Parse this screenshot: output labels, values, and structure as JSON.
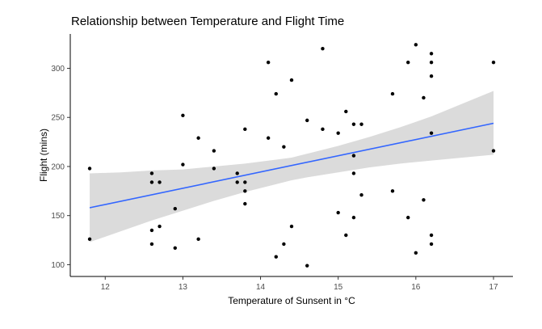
{
  "chart_data": {
    "type": "scatter",
    "title": "Relationship between Temperature and Flight Time",
    "xlabel": "Temperature of Sunsent in °C",
    "ylabel": "Flight (mins)",
    "xlim": [
      11.55,
      17.25
    ],
    "ylim": [
      88,
      335
    ],
    "xticks": [
      12,
      13,
      14,
      15,
      16,
      17
    ],
    "yticks": [
      100,
      150,
      200,
      250,
      300
    ],
    "grid": false,
    "legend": "none",
    "colors": {
      "points": "#000000",
      "fit_line": "#3366FF",
      "confidence_band": "#D9D9D9",
      "axis": "#000000",
      "tick_label": "#4D4D4D"
    },
    "points": [
      {
        "x": 11.8,
        "y": 198
      },
      {
        "x": 11.8,
        "y": 126
      },
      {
        "x": 12.6,
        "y": 193
      },
      {
        "x": 12.6,
        "y": 184
      },
      {
        "x": 12.6,
        "y": 135
      },
      {
        "x": 12.6,
        "y": 121
      },
      {
        "x": 12.7,
        "y": 184
      },
      {
        "x": 12.7,
        "y": 139
      },
      {
        "x": 12.9,
        "y": 157
      },
      {
        "x": 12.9,
        "y": 117
      },
      {
        "x": 13.0,
        "y": 252
      },
      {
        "x": 13.0,
        "y": 202
      },
      {
        "x": 13.2,
        "y": 229
      },
      {
        "x": 13.2,
        "y": 126
      },
      {
        "x": 13.4,
        "y": 216
      },
      {
        "x": 13.4,
        "y": 198
      },
      {
        "x": 13.7,
        "y": 193
      },
      {
        "x": 13.7,
        "y": 184
      },
      {
        "x": 13.8,
        "y": 238
      },
      {
        "x": 13.8,
        "y": 184
      },
      {
        "x": 13.8,
        "y": 175
      },
      {
        "x": 13.8,
        "y": 162
      },
      {
        "x": 14.1,
        "y": 306
      },
      {
        "x": 14.1,
        "y": 229
      },
      {
        "x": 14.2,
        "y": 274
      },
      {
        "x": 14.2,
        "y": 108
      },
      {
        "x": 14.3,
        "y": 220
      },
      {
        "x": 14.3,
        "y": 121
      },
      {
        "x": 14.4,
        "y": 288
      },
      {
        "x": 14.4,
        "y": 139
      },
      {
        "x": 14.6,
        "y": 247
      },
      {
        "x": 14.6,
        "y": 99
      },
      {
        "x": 14.8,
        "y": 320
      },
      {
        "x": 14.8,
        "y": 238
      },
      {
        "x": 15.0,
        "y": 234
      },
      {
        "x": 15.0,
        "y": 153
      },
      {
        "x": 15.1,
        "y": 256
      },
      {
        "x": 15.1,
        "y": 130
      },
      {
        "x": 15.2,
        "y": 243
      },
      {
        "x": 15.2,
        "y": 211
      },
      {
        "x": 15.2,
        "y": 193
      },
      {
        "x": 15.2,
        "y": 148
      },
      {
        "x": 15.3,
        "y": 243
      },
      {
        "x": 15.3,
        "y": 171
      },
      {
        "x": 15.7,
        "y": 274
      },
      {
        "x": 15.7,
        "y": 175
      },
      {
        "x": 15.9,
        "y": 306
      },
      {
        "x": 15.9,
        "y": 148
      },
      {
        "x": 16.0,
        "y": 324
      },
      {
        "x": 16.0,
        "y": 112
      },
      {
        "x": 16.1,
        "y": 270
      },
      {
        "x": 16.1,
        "y": 166
      },
      {
        "x": 16.2,
        "y": 315
      },
      {
        "x": 16.2,
        "y": 306
      },
      {
        "x": 16.2,
        "y": 292
      },
      {
        "x": 16.2,
        "y": 234
      },
      {
        "x": 16.2,
        "y": 130
      },
      {
        "x": 16.2,
        "y": 121
      },
      {
        "x": 17.0,
        "y": 306
      },
      {
        "x": 17.0,
        "y": 216
      }
    ],
    "fit": {
      "x": [
        11.8,
        17.0
      ],
      "y": [
        158,
        244
      ]
    },
    "confidence_band": {
      "x": [
        11.8,
        12.2,
        12.6,
        13.0,
        13.4,
        13.8,
        14.2,
        14.4,
        14.6,
        15.0,
        15.4,
        15.8,
        16.2,
        16.6,
        17.0
      ],
      "lower": [
        123,
        134,
        145,
        155,
        165,
        174,
        182,
        186,
        189,
        194,
        199,
        203,
        206,
        209,
        212
      ],
      "upper": [
        193,
        194,
        196,
        197,
        200,
        203,
        207,
        209,
        213,
        221,
        230,
        240,
        251,
        264,
        277
      ]
    }
  }
}
